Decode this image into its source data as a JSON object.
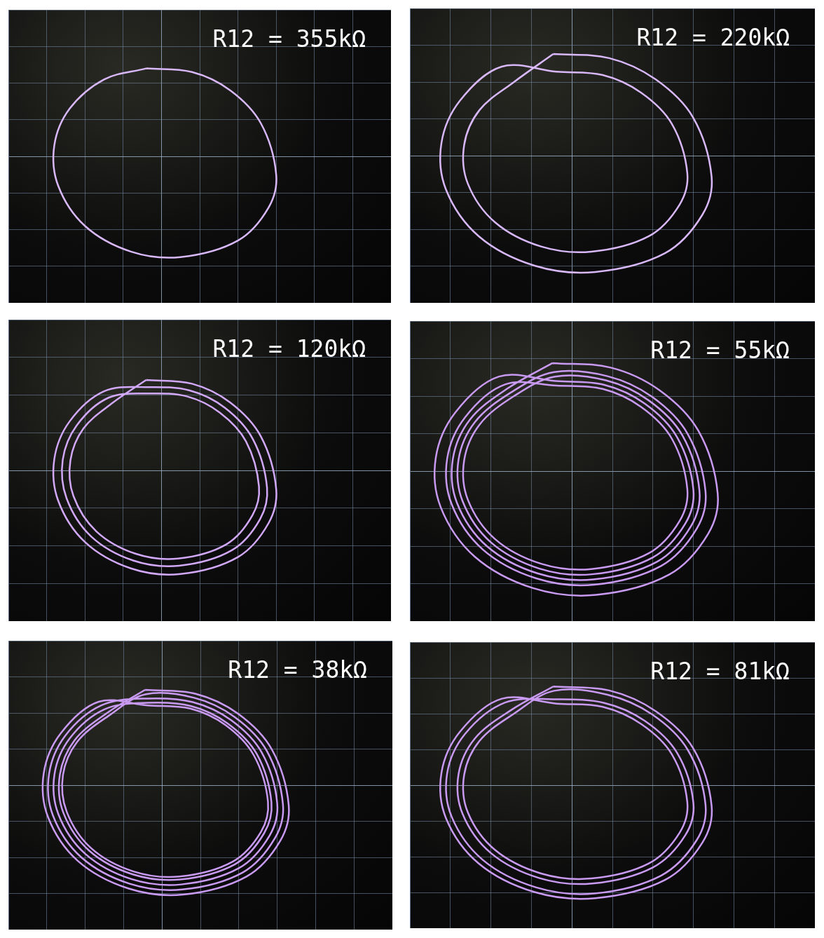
{
  "chart_data": [
    {
      "type": "line",
      "title": "R12 = 355kΩ",
      "color": "#d8b8f8",
      "grid": true,
      "tick_labels": false,
      "xlim": [
        -4,
        6
      ],
      "ylim": [
        -4,
        4
      ],
      "xticks": [
        -4,
        -3,
        -2,
        -1,
        0,
        1,
        2,
        3,
        4,
        5,
        6
      ],
      "yticks": [
        -4,
        -3,
        -2,
        -1,
        0,
        1,
        2,
        3,
        4
      ],
      "x": [
        -0.4,
        0.8,
        1.8,
        2.6,
        3.0,
        2.8,
        2.0,
        0.5,
        -0.8,
        -2.0,
        -2.7,
        -2.8,
        -2.4,
        -1.5,
        -0.4
      ],
      "values": [
        2.4,
        2.3,
        1.8,
        0.9,
        -0.5,
        -1.4,
        -2.3,
        -2.75,
        -2.6,
        -1.9,
        -0.8,
        0.3,
        1.3,
        2.1,
        2.4
      ]
    },
    {
      "type": "line",
      "title": "R12 = 220kΩ",
      "color": "#d8b8f8",
      "grid": true,
      "tick_labels": false,
      "xlim": [
        -4,
        6
      ],
      "ylim": [
        -4,
        4
      ],
      "xticks": [
        -4,
        -3,
        -2,
        -1,
        0,
        1,
        2,
        3,
        4,
        5,
        6
      ],
      "yticks": [
        -4,
        -3,
        -2,
        -1,
        0,
        1,
        2,
        3,
        4
      ],
      "x": [
        -0.46,
        0.92,
        2.07,
        2.99,
        3.45,
        3.22,
        2.3,
        0.58,
        -0.92,
        -2.3,
        -3.11,
        -3.22,
        -2.76,
        -1.73,
        -0.38,
        0.76,
        1.71,
        2.47,
        2.85,
        2.66,
        1.9,
        0.48,
        -0.76,
        -1.9,
        -2.57,
        -2.66,
        -2.28,
        -1.43,
        -0.46
      ],
      "values": [
        2.76,
        2.65,
        2.07,
        1.04,
        -0.58,
        -1.61,
        -2.65,
        -3.16,
        -2.99,
        -2.19,
        -0.92,
        0.35,
        1.5,
        2.42,
        2.28,
        2.19,
        1.71,
        0.86,
        -0.48,
        -1.33,
        -2.19,
        -2.61,
        -2.47,
        -1.81,
        -0.76,
        0.29,
        1.24,
        2.0,
        2.76
      ]
    },
    {
      "type": "line",
      "title": "R12 = 120kΩ",
      "color": "#d2a8f8",
      "grid": true,
      "tick_labels": false,
      "xlim": [
        -4,
        6
      ],
      "ylim": [
        -4,
        4
      ],
      "xticks": [
        -4,
        -3,
        -2,
        -1,
        0,
        1,
        2,
        3,
        4,
        5,
        6
      ],
      "yticks": [
        -4,
        -3,
        -2,
        -1,
        0,
        1,
        2,
        3,
        4
      ],
      "x": [
        -0.4,
        0.8,
        1.8,
        2.6,
        3.0,
        2.8,
        2.0,
        0.5,
        -0.8,
        -2.0,
        -2.7,
        -2.8,
        -2.4,
        -1.5,
        -0.37,
        0.74,
        1.66,
        2.39,
        2.76,
        2.58,
        1.84,
        0.46,
        -0.74,
        -1.84,
        -2.48,
        -2.58,
        -2.21,
        -1.38,
        -0.34,
        0.68,
        1.53,
        2.21,
        2.55,
        2.38,
        1.7,
        0.43,
        -0.68,
        -1.7,
        -2.3,
        -2.38,
        -2.04,
        -1.28,
        -0.4
      ],
      "values": [
        2.4,
        2.3,
        1.8,
        0.9,
        -0.5,
        -1.4,
        -2.3,
        -2.75,
        -2.6,
        -1.9,
        -0.8,
        0.3,
        1.3,
        2.1,
        2.21,
        2.12,
        1.66,
        0.83,
        -0.46,
        -1.29,
        -2.12,
        -2.53,
        -2.39,
        -1.75,
        -0.74,
        0.28,
        1.2,
        1.93,
        2.04,
        1.96,
        1.53,
        0.77,
        -0.43,
        -1.19,
        -1.96,
        -2.34,
        -2.21,
        -1.62,
        -0.68,
        0.26,
        1.11,
        1.79,
        2.4
      ]
    },
    {
      "type": "line",
      "title": "R12 = 55kΩ",
      "color": "#c99af2",
      "grid": true,
      "tick_labels": false,
      "xlim": [
        -4,
        6
      ],
      "ylim": [
        -4,
        4
      ],
      "xticks": [
        -4,
        -3,
        -2,
        -1,
        0,
        1,
        2,
        3,
        4,
        5,
        6
      ],
      "yticks": [
        -4,
        -3,
        -2,
        -1,
        0,
        1,
        2,
        3,
        4
      ],
      "x": [
        -0.48,
        0.96,
        2.16,
        3.12,
        3.6,
        3.36,
        2.4,
        0.6,
        -0.96,
        -2.4,
        -3.24,
        -3.36,
        -2.88,
        -1.8,
        -0.4,
        0.8,
        1.8,
        2.6,
        3.0,
        2.8,
        2.0,
        0.5,
        -0.8,
        -2.0,
        -2.7,
        -2.8,
        -2.4,
        -1.5,
        -0.44,
        0.88,
        1.98,
        2.86,
        3.3,
        3.08,
        2.2,
        0.55,
        -0.88,
        -2.2,
        -2.97,
        -3.08,
        -2.64,
        -1.65,
        -0.38,
        0.76,
        1.71,
        2.47,
        2.85,
        2.66,
        1.9,
        0.48,
        -0.76,
        -1.9,
        -2.57,
        -2.66,
        -2.28,
        -1.43,
        -0.42,
        0.84,
        1.89,
        2.73,
        3.15,
        2.94,
        2.1,
        0.53,
        -0.84,
        -2.1,
        -2.84,
        -2.94,
        -2.52,
        -1.58,
        -0.48
      ],
      "values": [
        2.88,
        2.76,
        2.16,
        1.08,
        -0.6,
        -1.68,
        -2.76,
        -3.3,
        -3.12,
        -2.28,
        -0.96,
        0.36,
        1.56,
        2.52,
        2.4,
        2.3,
        1.8,
        0.9,
        -0.5,
        -1.4,
        -2.3,
        -2.75,
        -2.6,
        -1.9,
        -0.8,
        0.3,
        1.3,
        2.1,
        2.64,
        2.53,
        1.98,
        0.99,
        -0.55,
        -1.54,
        -2.53,
        -3.03,
        -2.86,
        -2.09,
        -0.88,
        0.33,
        1.43,
        2.31,
        2.28,
        2.19,
        1.71,
        0.86,
        -0.48,
        -1.33,
        -2.19,
        -2.61,
        -2.47,
        -1.81,
        -0.76,
        0.29,
        1.24,
        2.0,
        2.52,
        2.42,
        1.89,
        0.95,
        -0.53,
        -1.47,
        -2.42,
        -2.89,
        -2.73,
        -2.0,
        -0.84,
        0.32,
        1.37,
        2.21,
        2.88
      ]
    },
    {
      "type": "line",
      "title": "R12 = 38kΩ",
      "color": "#c99af2",
      "grid": true,
      "tick_labels": false,
      "xlim": [
        -4,
        6
      ],
      "ylim": [
        -4,
        4
      ],
      "xticks": [
        -4,
        -3,
        -2,
        -1,
        0,
        1,
        2,
        3,
        4,
        5,
        6
      ],
      "yticks": [
        -4,
        -3,
        -2,
        -1,
        0,
        1,
        2,
        3,
        4
      ],
      "x": [
        -0.44,
        0.88,
        1.98,
        2.86,
        3.3,
        3.08,
        2.2,
        0.55,
        -0.88,
        -2.2,
        -2.97,
        -3.08,
        -2.64,
        -1.65,
        -0.37,
        0.74,
        1.66,
        2.39,
        2.76,
        2.58,
        1.84,
        0.46,
        -0.74,
        -1.84,
        -2.48,
        -2.58,
        -2.21,
        -1.38,
        -0.42,
        0.84,
        1.89,
        2.73,
        3.15,
        2.94,
        2.1,
        0.53,
        -0.84,
        -2.1,
        -2.84,
        -2.94,
        -2.52,
        -1.58,
        -0.4,
        0.8,
        1.8,
        2.6,
        3.0,
        2.8,
        2.0,
        0.5,
        -0.8,
        -2.0,
        -2.7,
        -2.8,
        -2.4,
        -1.5,
        -0.38,
        0.76,
        1.71,
        2.47,
        2.85,
        2.66,
        1.9,
        0.48,
        -0.76,
        -1.9,
        -2.57,
        -2.66,
        -2.28,
        -1.43,
        -0.44
      ],
      "values": [
        2.64,
        2.53,
        1.98,
        0.99,
        -0.55,
        -1.54,
        -2.53,
        -3.03,
        -2.86,
        -2.09,
        -0.88,
        0.33,
        1.43,
        2.31,
        2.21,
        2.12,
        1.66,
        0.83,
        -0.46,
        -1.29,
        -2.12,
        -2.53,
        -2.39,
        -1.75,
        -0.74,
        0.28,
        1.2,
        1.93,
        2.52,
        2.42,
        1.89,
        0.95,
        -0.53,
        -1.47,
        -2.42,
        -2.89,
        -2.73,
        -2.0,
        -0.84,
        0.32,
        1.37,
        2.21,
        2.4,
        2.3,
        1.8,
        0.9,
        -0.5,
        -1.4,
        -2.3,
        -2.75,
        -2.6,
        -1.9,
        -0.8,
        0.3,
        1.3,
        2.1,
        2.28,
        2.19,
        1.71,
        0.86,
        -0.48,
        -1.33,
        -2.19,
        -2.61,
        -2.47,
        -1.81,
        -0.76,
        0.29,
        1.24,
        2.0,
        2.64
      ]
    },
    {
      "type": "line",
      "title": "R12 = 81kΩ",
      "color": "#c99af2",
      "grid": true,
      "tick_labels": false,
      "xlim": [
        -4,
        6
      ],
      "ylim": [
        -4,
        4
      ],
      "xticks": [
        -4,
        -3,
        -2,
        -1,
        0,
        1,
        2,
        3,
        4,
        5,
        6
      ],
      "yticks": [
        -4,
        -3,
        -2,
        -1,
        0,
        1,
        2,
        3,
        4
      ],
      "x": [
        -0.46,
        0.92,
        2.07,
        2.99,
        3.45,
        3.22,
        2.3,
        0.58,
        -0.92,
        -2.3,
        -3.11,
        -3.22,
        -2.76,
        -1.73,
        -0.38,
        0.76,
        1.71,
        2.47,
        2.85,
        2.66,
        1.9,
        0.48,
        -0.76,
        -1.9,
        -2.57,
        -2.66,
        -2.28,
        -1.43,
        -0.44,
        0.88,
        1.98,
        2.86,
        3.3,
        3.08,
        2.2,
        0.55,
        -0.88,
        -2.2,
        -2.97,
        -3.08,
        -2.64,
        -1.65,
        -0.4,
        0.8,
        1.8,
        2.6,
        3.0,
        2.8,
        2.0,
        0.5,
        -0.8,
        -2.0,
        -2.7,
        -2.8,
        -2.4,
        -1.5,
        -0.46
      ],
      "values": [
        2.76,
        2.65,
        2.07,
        1.04,
        -0.58,
        -1.61,
        -2.65,
        -3.16,
        -2.99,
        -2.19,
        -0.92,
        0.35,
        1.5,
        2.42,
        2.28,
        2.19,
        1.71,
        0.86,
        -0.48,
        -1.33,
        -2.19,
        -2.61,
        -2.47,
        -1.81,
        -0.76,
        0.29,
        1.24,
        2.0,
        2.64,
        2.53,
        1.98,
        0.99,
        -0.55,
        -1.54,
        -2.53,
        -3.03,
        -2.86,
        -2.09,
        -0.88,
        0.33,
        1.43,
        2.31,
        2.4,
        2.3,
        1.8,
        0.9,
        -0.5,
        -1.4,
        -2.3,
        -2.75,
        -2.6,
        -1.9,
        -0.8,
        0.3,
        1.3,
        2.1,
        2.76
      ]
    }
  ]
}
